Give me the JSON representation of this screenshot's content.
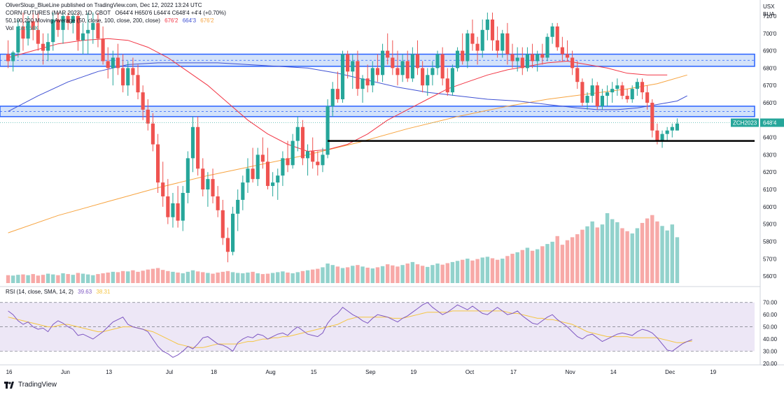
{
  "header": {
    "publisher": "OliverSloup_BlueLine published on TradingView.com, Dec 12, 2022 13:24 UTC",
    "symbol_line": "CORN FUTURES (MAR 2023), 1D, CBOT",
    "ohlc": "O644'4  H650'6  L644'4  C648'4  +4'4 (+0.70%)",
    "ma_label": "50,100,200 Moving Average (50, close, 100, close, 200, close)",
    "ma_values": [
      "676'2",
      "664'3",
      "676'2"
    ],
    "vol_label": "Vol",
    "vol_value": "14.564K",
    "rsi_label": "RSI (14, close, SMA, 14, 2)",
    "rsi_values": [
      "39.63",
      "38.31"
    ]
  },
  "price_axis": {
    "currency": "USX",
    "unit": "BUA",
    "ticks": [
      "710'0",
      "700'0",
      "690'0",
      "680'0",
      "670'0",
      "660'0",
      "640'0",
      "630'0",
      "620'0",
      "610'0",
      "600'0",
      "590'0",
      "580'0",
      "570'0",
      "560'0"
    ],
    "tick_values": [
      710,
      700,
      690,
      680,
      670,
      660,
      640,
      630,
      620,
      610,
      600,
      590,
      580,
      570,
      560
    ],
    "symbol_badge": "ZCH2023",
    "last_price": "648'4"
  },
  "rsi_axis": {
    "ticks": [
      "70.00",
      "60.00",
      "50.00",
      "40.00",
      "30.00",
      "20.00"
    ],
    "tick_values": [
      70,
      60,
      50,
      40,
      30,
      20
    ]
  },
  "time_axis": {
    "labels": [
      "16",
      "Jun",
      "13",
      "Jul",
      "18",
      "Aug",
      "15",
      "Sep",
      "19",
      "Oct",
      "17",
      "Nov",
      "14",
      "Dec",
      "19"
    ],
    "positions": [
      0,
      11,
      20,
      32,
      41,
      52,
      61,
      72,
      81,
      92,
      101,
      112,
      121,
      132,
      141
    ]
  },
  "branding": {
    "logo_text": "TradingView"
  },
  "colors": {
    "up": "#26a69a",
    "down": "#ef5350",
    "ma50": "#f23645",
    "ma100": "#3f51d3",
    "ma200": "#f7a440",
    "zone_fill": "#bcd2f7",
    "zone_line": "#2962ff",
    "rsi_line": "#7e57c2",
    "rsi_ma": "#f5c542",
    "rsi_bg": "#ede7f6",
    "support": "#000000"
  },
  "chart_data": {
    "type": "candlestick",
    "title": "CORN FUTURES (MAR 2023), 1D, CBOT",
    "ylabel": "USX",
    "ylim": [
      556,
      712
    ],
    "start_date": "2022-05-16",
    "date_note": "candles are consecutive trading days starting at start_date (weekends skipped); index 0 = May 16, 2022",
    "candles": [
      [
        688,
        696,
        680,
        684
      ],
      [
        684,
        690,
        678,
        689
      ],
      [
        689,
        708,
        686,
        704
      ],
      [
        704,
        712,
        690,
        697
      ],
      [
        697,
        710,
        693,
        707
      ],
      [
        707,
        712,
        696,
        702
      ],
      [
        702,
        712,
        690,
        694
      ],
      [
        694,
        700,
        682,
        690
      ],
      [
        690,
        700,
        684,
        695
      ],
      [
        695,
        712,
        690,
        708
      ],
      [
        708,
        712,
        698,
        702
      ],
      [
        702,
        712,
        694,
        710
      ],
      [
        710,
        712,
        702,
        706
      ],
      [
        706,
        712,
        700,
        710
      ],
      [
        710,
        712,
        690,
        696
      ],
      [
        696,
        706,
        688,
        700
      ],
      [
        700,
        712,
        688,
        702
      ],
      [
        702,
        712,
        694,
        706
      ],
      [
        706,
        712,
        692,
        697
      ],
      [
        697,
        704,
        682,
        684
      ],
      [
        684,
        692,
        674,
        680
      ],
      [
        680,
        690,
        670,
        686
      ],
      [
        686,
        694,
        676,
        680
      ],
      [
        680,
        688,
        666,
        670
      ],
      [
        670,
        684,
        664,
        680
      ],
      [
        680,
        686,
        670,
        676
      ],
      [
        676,
        682,
        662,
        666
      ],
      [
        666,
        670,
        650,
        656
      ],
      [
        656,
        662,
        644,
        648
      ],
      [
        648,
        654,
        632,
        636
      ],
      [
        636,
        642,
        608,
        614
      ],
      [
        614,
        626,
        600,
        606
      ],
      [
        606,
        616,
        590,
        594
      ],
      [
        594,
        608,
        588,
        602
      ],
      [
        602,
        612,
        588,
        592
      ],
      [
        592,
        612,
        586,
        608
      ],
      [
        608,
        632,
        602,
        628
      ],
      [
        628,
        652,
        620,
        646
      ],
      [
        646,
        652,
        618,
        622
      ],
      [
        622,
        628,
        606,
        610
      ],
      [
        610,
        620,
        600,
        616
      ],
      [
        616,
        622,
        602,
        606
      ],
      [
        606,
        612,
        594,
        598
      ],
      [
        598,
        604,
        578,
        582
      ],
      [
        582,
        588,
        568,
        574
      ],
      [
        574,
        600,
        572,
        596
      ],
      [
        596,
        610,
        586,
        604
      ],
      [
        604,
        618,
        598,
        614
      ],
      [
        614,
        628,
        608,
        622
      ],
      [
        622,
        634,
        614,
        616
      ],
      [
        616,
        634,
        612,
        630
      ],
      [
        630,
        640,
        622,
        626
      ],
      [
        626,
        634,
        610,
        612
      ],
      [
        612,
        620,
        606,
        614
      ],
      [
        614,
        622,
        604,
        618
      ],
      [
        618,
        632,
        612,
        628
      ],
      [
        628,
        638,
        620,
        624
      ],
      [
        624,
        642,
        622,
        638
      ],
      [
        638,
        652,
        632,
        646
      ],
      [
        646,
        650,
        624,
        628
      ],
      [
        628,
        636,
        618,
        632
      ],
      [
        632,
        640,
        622,
        626
      ],
      [
        626,
        632,
        618,
        624
      ],
      [
        624,
        634,
        620,
        630
      ],
      [
        630,
        662,
        628,
        658
      ],
      [
        658,
        672,
        652,
        668
      ],
      [
        668,
        678,
        660,
        662
      ],
      [
        662,
        690,
        660,
        688
      ],
      [
        688,
        690,
        674,
        678
      ],
      [
        678,
        688,
        668,
        684
      ],
      [
        684,
        690,
        664,
        668
      ],
      [
        668,
        676,
        660,
        674
      ],
      [
        674,
        682,
        666,
        670
      ],
      [
        670,
        684,
        666,
        680
      ],
      [
        680,
        688,
        672,
        676
      ],
      [
        676,
        694,
        672,
        690
      ],
      [
        690,
        700,
        682,
        686
      ],
      [
        686,
        696,
        676,
        680
      ],
      [
        680,
        690,
        670,
        676
      ],
      [
        676,
        688,
        672,
        684
      ],
      [
        684,
        690,
        672,
        674
      ],
      [
        674,
        692,
        672,
        688
      ],
      [
        688,
        696,
        676,
        680
      ],
      [
        680,
        684,
        666,
        670
      ],
      [
        670,
        680,
        664,
        676
      ],
      [
        676,
        684,
        670,
        680
      ],
      [
        680,
        690,
        676,
        688
      ],
      [
        688,
        692,
        670,
        674
      ],
      [
        674,
        680,
        664,
        666
      ],
      [
        666,
        682,
        664,
        680
      ],
      [
        680,
        692,
        678,
        690
      ],
      [
        690,
        700,
        682,
        684
      ],
      [
        684,
        702,
        680,
        700
      ],
      [
        700,
        708,
        690,
        694
      ],
      [
        694,
        698,
        682,
        690
      ],
      [
        690,
        708,
        686,
        702
      ],
      [
        702,
        712,
        696,
        708
      ],
      [
        708,
        712,
        690,
        696
      ],
      [
        696,
        704,
        686,
        690
      ],
      [
        690,
        702,
        686,
        700
      ],
      [
        700,
        706,
        682,
        688
      ],
      [
        688,
        694,
        680,
        684
      ],
      [
        684,
        692,
        678,
        686
      ],
      [
        686,
        692,
        676,
        680
      ],
      [
        680,
        692,
        678,
        688
      ],
      [
        688,
        694,
        680,
        684
      ],
      [
        684,
        690,
        678,
        688
      ],
      [
        688,
        694,
        682,
        686
      ],
      [
        686,
        700,
        684,
        698
      ],
      [
        698,
        706,
        694,
        704
      ],
      [
        704,
        706,
        690,
        692
      ],
      [
        692,
        698,
        684,
        688
      ],
      [
        688,
        696,
        684,
        686
      ],
      [
        686,
        690,
        676,
        680
      ],
      [
        680,
        684,
        668,
        672
      ],
      [
        672,
        674,
        658,
        660
      ],
      [
        660,
        666,
        656,
        664
      ],
      [
        664,
        674,
        660,
        670
      ],
      [
        670,
        672,
        656,
        658
      ],
      [
        658,
        668,
        656,
        664
      ],
      [
        664,
        670,
        658,
        666
      ],
      [
        666,
        672,
        660,
        668
      ],
      [
        668,
        674,
        664,
        670
      ],
      [
        670,
        672,
        662,
        664
      ],
      [
        664,
        668,
        660,
        662
      ],
      [
        662,
        670,
        660,
        668
      ],
      [
        668,
        674,
        664,
        672
      ],
      [
        672,
        674,
        662,
        666
      ],
      [
        666,
        670,
        656,
        660
      ],
      [
        660,
        662,
        640,
        644
      ],
      [
        644,
        648,
        636,
        638
      ],
      [
        638,
        644,
        634,
        642
      ],
      [
        642,
        646,
        638,
        644
      ],
      [
        644,
        648,
        640,
        646
      ],
      [
        644,
        651,
        644,
        648
      ]
    ],
    "volume": [
      2.1,
      2.0,
      2.2,
      2.3,
      2.1,
      2.4,
      2.0,
      2.2,
      2.5,
      2.3,
      2.1,
      2.6,
      2.4,
      2.2,
      2.7,
      2.5,
      2.3,
      2.1,
      2.4,
      2.6,
      2.8,
      3.0,
      2.9,
      3.2,
      3.1,
      3.4,
      3.0,
      3.3,
      3.6,
      3.8,
      4.0,
      3.5,
      3.2,
      3.0,
      2.8,
      2.6,
      3.0,
      3.4,
      3.1,
      2.9,
      2.7,
      2.5,
      2.8,
      3.0,
      3.2,
      2.9,
      2.7,
      2.6,
      2.8,
      3.0,
      2.6,
      2.4,
      2.5,
      2.7,
      2.9,
      3.1,
      2.8,
      2.6,
      2.9,
      3.2,
      3.4,
      3.6,
      3.8,
      4.2,
      5.2,
      4.8,
      4.4,
      4.0,
      4.2,
      4.6,
      4.8,
      4.4,
      4.1,
      3.9,
      4.2,
      4.5,
      5.0,
      4.7,
      4.4,
      4.8,
      5.2,
      5.6,
      5.0,
      4.6,
      4.3,
      4.8,
      5.2,
      4.9,
      5.3,
      5.6,
      5.9,
      6.2,
      6.5,
      6.0,
      6.4,
      6.8,
      7.0,
      6.6,
      6.2,
      6.5,
      7.2,
      7.8,
      8.2,
      8.8,
      9.4,
      8.6,
      9.0,
      9.8,
      10.4,
      11.0,
      12.5,
      10.2,
      11.4,
      12.2,
      13.0,
      14.2,
      15.1,
      16.4,
      14.8,
      15.6,
      18.6,
      17.0,
      16.2,
      14.6,
      13.8,
      13.2,
      14.6,
      16.0,
      17.2,
      18.1,
      16.4,
      15.2,
      14.0,
      15.6,
      12.2,
      10.8,
      8.6,
      7.4,
      9.2,
      1.2
    ],
    "rsi": [
      63,
      60,
      55,
      52,
      54,
      50,
      48,
      49,
      46,
      52,
      55,
      53,
      50,
      48,
      43,
      44,
      42,
      40,
      43,
      46,
      50,
      54,
      56,
      58,
      52,
      50,
      49,
      48,
      46,
      40,
      34,
      30,
      28,
      25,
      27,
      30,
      34,
      32,
      36,
      41,
      42,
      39,
      36,
      35,
      33,
      30,
      37,
      40,
      42,
      41,
      44,
      43,
      40,
      42,
      44,
      45,
      43,
      47,
      50,
      47,
      44,
      43,
      42,
      45,
      53,
      58,
      61,
      66,
      63,
      60,
      58,
      55,
      53,
      57,
      60,
      59,
      58,
      56,
      54,
      57,
      59,
      62,
      65,
      68,
      70,
      66,
      63,
      60,
      62,
      65,
      68,
      66,
      64,
      67,
      64,
      61,
      60,
      63,
      66,
      63,
      60,
      61,
      63,
      59,
      56,
      53,
      52,
      55,
      58,
      60,
      56,
      53,
      50,
      46,
      42,
      40,
      43,
      44,
      41,
      38,
      40,
      42,
      44,
      45,
      44,
      43,
      46,
      48,
      47,
      45,
      41,
      36,
      31,
      30,
      33,
      36,
      38,
      39.6
    ],
    "rsi_ma": [
      58,
      57,
      56,
      55,
      54,
      53,
      52,
      51,
      50,
      50,
      51,
      52,
      52,
      51,
      50,
      49,
      48,
      47,
      46,
      46,
      47,
      48,
      49,
      50,
      50,
      50,
      49,
      48,
      47,
      46,
      44,
      42,
      40,
      38,
      36,
      35,
      34,
      33,
      33,
      33,
      34,
      35,
      36,
      36,
      36,
      36,
      36,
      37,
      38,
      38,
      39,
      40,
      40,
      41,
      41,
      42,
      42,
      43,
      44,
      45,
      46,
      47,
      48,
      49,
      50,
      51,
      52,
      54,
      56,
      57,
      58,
      58,
      58,
      58,
      58,
      58,
      58,
      57,
      57,
      57,
      58,
      59,
      60,
      61,
      62,
      62,
      62,
      62,
      62,
      63,
      63,
      63,
      63,
      63,
      63,
      63,
      63,
      63,
      63,
      63,
      62,
      61,
      61,
      60,
      59,
      58,
      57,
      57,
      56,
      56,
      55,
      54,
      53,
      52,
      50,
      48,
      46,
      45,
      44,
      43,
      42,
      42,
      42,
      42,
      42,
      41,
      41,
      41,
      41,
      41,
      41,
      40,
      39,
      38,
      37,
      37,
      38,
      38.3
    ],
    "ma50": [
      [
        0,
        686
      ],
      [
        5,
        690
      ],
      [
        10,
        694
      ],
      [
        15,
        696
      ],
      [
        20,
        697
      ],
      [
        24,
        696
      ],
      [
        28,
        692
      ],
      [
        32,
        686
      ],
      [
        36,
        678
      ],
      [
        40,
        670
      ],
      [
        44,
        660
      ],
      [
        48,
        650
      ],
      [
        52,
        642
      ],
      [
        56,
        636
      ],
      [
        60,
        632
      ],
      [
        64,
        633
      ],
      [
        68,
        636
      ],
      [
        72,
        642
      ],
      [
        76,
        650
      ],
      [
        80,
        656
      ],
      [
        84,
        662
      ],
      [
        88,
        668
      ],
      [
        92,
        672
      ],
      [
        96,
        676
      ],
      [
        100,
        679
      ],
      [
        104,
        681
      ],
      [
        108,
        683
      ],
      [
        112,
        684
      ],
      [
        116,
        682
      ],
      [
        120,
        680
      ],
      [
        124,
        677
      ],
      [
        128,
        676
      ],
      [
        132,
        676
      ]
    ],
    "ma100": [
      [
        0,
        655
      ],
      [
        6,
        664
      ],
      [
        12,
        672
      ],
      [
        18,
        678
      ],
      [
        24,
        682
      ],
      [
        30,
        683
      ],
      [
        36,
        683
      ],
      [
        42,
        683
      ],
      [
        48,
        682
      ],
      [
        54,
        681
      ],
      [
        60,
        680
      ],
      [
        66,
        677
      ],
      [
        72,
        673
      ],
      [
        78,
        669
      ],
      [
        84,
        666
      ],
      [
        90,
        664
      ],
      [
        96,
        662
      ],
      [
        102,
        661
      ],
      [
        108,
        659
      ],
      [
        114,
        657
      ],
      [
        118,
        656
      ],
      [
        122,
        656
      ],
      [
        126,
        657
      ],
      [
        130,
        659
      ],
      [
        134,
        661
      ],
      [
        136,
        664
      ]
    ],
    "ma200": [
      [
        0,
        585
      ],
      [
        10,
        595
      ],
      [
        20,
        603
      ],
      [
        30,
        611
      ],
      [
        40,
        618
      ],
      [
        50,
        624
      ],
      [
        60,
        630
      ],
      [
        70,
        637
      ],
      [
        80,
        645
      ],
      [
        90,
        652
      ],
      [
        100,
        658
      ],
      [
        108,
        662
      ],
      [
        116,
        665
      ],
      [
        124,
        668
      ],
      [
        130,
        671
      ],
      [
        136,
        676
      ]
    ],
    "zones": [
      [
        681,
        688
      ],
      [
        652,
        658
      ]
    ],
    "support_level": 638,
    "support_start": 64
  }
}
